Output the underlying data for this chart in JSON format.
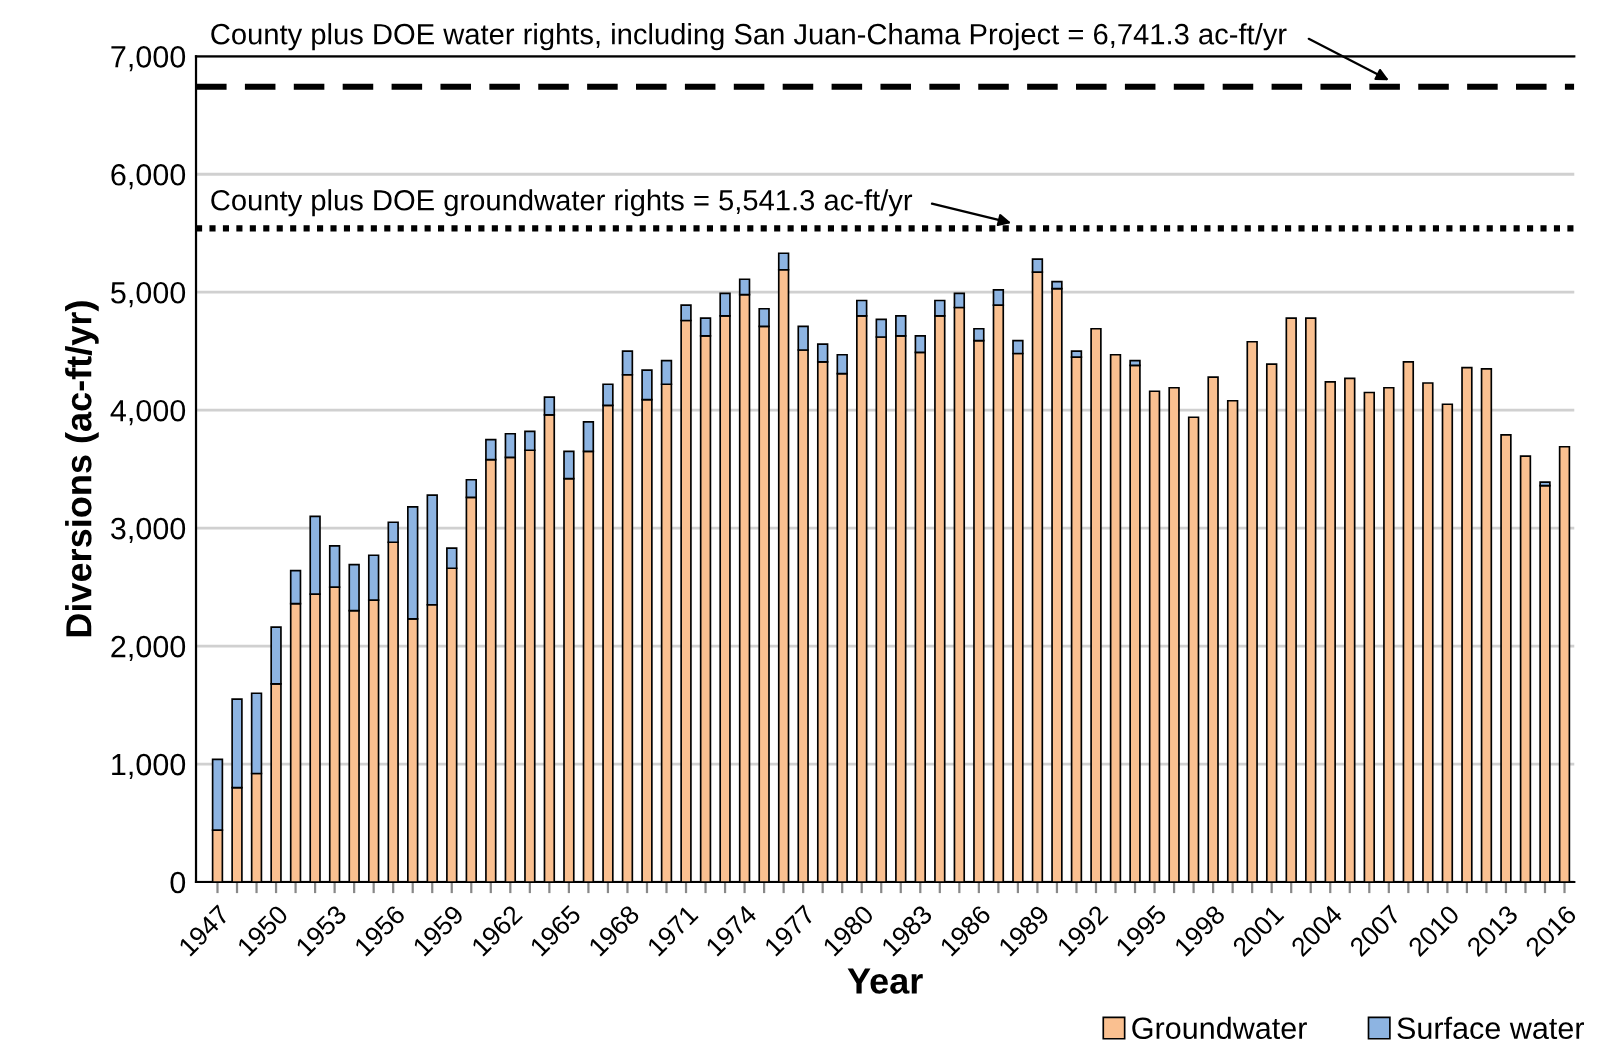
{
  "chart_data": {
    "type": "bar",
    "stacked": true,
    "ylabel": "Diversions (ac-ft/yr)",
    "xlabel": "Year",
    "categories": [
      "1947",
      null,
      null,
      "1950",
      null,
      null,
      "1953",
      null,
      null,
      "1956",
      null,
      null,
      "1959",
      null,
      null,
      "1962",
      null,
      null,
      "1965",
      null,
      null,
      "1968",
      null,
      null,
      "1971",
      null,
      null,
      "1974",
      null,
      null,
      "1977",
      null,
      null,
      "1980",
      null,
      null,
      "1983",
      null,
      null,
      "1986",
      null,
      null,
      "1989",
      null,
      null,
      "1992",
      null,
      null,
      "1995",
      null,
      null,
      "1998",
      null,
      null,
      "2001",
      null,
      null,
      "2004",
      null,
      null,
      "2007",
      null,
      null,
      "2010",
      null,
      null,
      "2013",
      null,
      null,
      "2016"
    ],
    "series": [
      {
        "name": "Groundwater",
        "color": "#fac090",
        "values": [
          440,
          800,
          920,
          1680,
          2360,
          2440,
          2500,
          2300,
          2390,
          2880,
          2230,
          2350,
          2660,
          3260,
          3580,
          3600,
          3660,
          3960,
          3420,
          3650,
          4040,
          4300,
          4090,
          4220,
          4760,
          4630,
          4800,
          4980,
          4710,
          5190,
          4510,
          4410,
          4310,
          4800,
          4620,
          4630,
          4490,
          4800,
          4870,
          4590,
          4890,
          4480,
          5170,
          5030,
          4450,
          4690,
          4470,
          4380,
          4160,
          4190,
          3940,
          4280,
          4080,
          4580,
          4390,
          4780,
          4780,
          4240,
          4270,
          4150,
          4190,
          4410,
          4230,
          4050,
          4360,
          4350,
          3790,
          3610,
          3360,
          3690
        ]
      },
      {
        "name": "Surface water",
        "color": "#8db4e2",
        "values": [
          600,
          750,
          680,
          480,
          280,
          660,
          350,
          390,
          380,
          170,
          950,
          930,
          170,
          150,
          170,
          200,
          160,
          150,
          230,
          250,
          180,
          200,
          250,
          200,
          130,
          150,
          190,
          130,
          150,
          140,
          200,
          150,
          160,
          130,
          150,
          170,
          140,
          130,
          120,
          100,
          130,
          110,
          110,
          60,
          50,
          0,
          0,
          40,
          0,
          0,
          0,
          0,
          0,
          0,
          0,
          0,
          0,
          0,
          0,
          0,
          0,
          0,
          0,
          0,
          0,
          0,
          0,
          0,
          30,
          0
        ]
      }
    ],
    "ylim": [
      0,
      7000
    ],
    "yticks": [
      {
        "value": 0,
        "label": "0"
      },
      {
        "value": 1000,
        "label": "1,000"
      },
      {
        "value": 2000,
        "label": "2,000"
      },
      {
        "value": 3000,
        "label": "3,000"
      },
      {
        "value": 4000,
        "label": "4,000"
      },
      {
        "value": 5000,
        "label": "5,000"
      },
      {
        "value": 6000,
        "label": "6,000"
      },
      {
        "value": 7000,
        "label": "7,000"
      }
    ],
    "grid": "y",
    "legend": "bottom right",
    "ref_lines": [
      {
        "axis": "y",
        "value": 6741.3,
        "label": "County plus DOE water rights, including San Juan-Chama Project = 6,741.3 ac-ft/yr",
        "line_style": "dashed",
        "color": "#000000"
      },
      {
        "axis": "y",
        "value": 5541.3,
        "label": "County plus DOE groundwater rights = 5,541.3 ac-ft/yr",
        "line_style": "dotted",
        "color": "#000000"
      }
    ]
  }
}
